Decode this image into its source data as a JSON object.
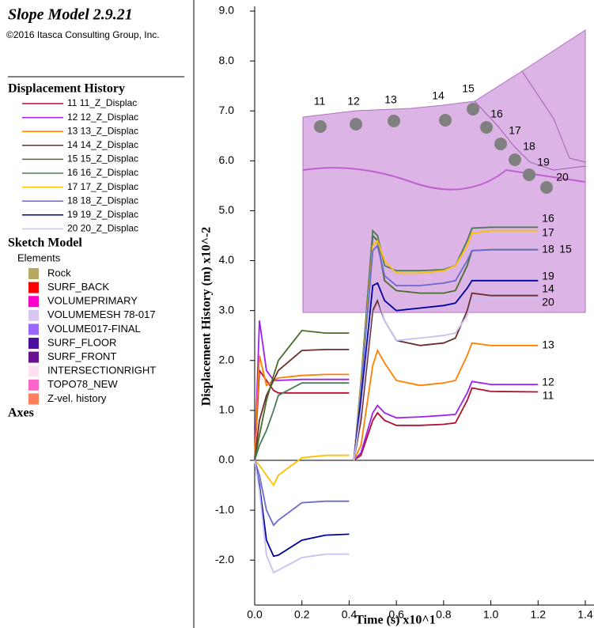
{
  "header": {
    "title": "Slope Model 2.9.21",
    "copyright": "©2016 Itasca Consulting Group, Inc."
  },
  "legend_title": "Displacement  History",
  "sketch_model": {
    "title": "Sketch Model",
    "subtitle": "Elements",
    "items": [
      {
        "label": "Rock",
        "color": "#b5a860"
      },
      {
        "label": "SURF_BACK",
        "color": "#ff0000"
      },
      {
        "label": "VOLUMEPRIMARY",
        "color": "#ff00cc"
      },
      {
        "label": "VOLUMEMESH 78-017",
        "color": "#d8c8f0"
      },
      {
        "label": "VOLUME017-FINAL",
        "color": "#9966ff"
      },
      {
        "label": "SURF_FLOOR",
        "color": "#4b0fa0"
      },
      {
        "label": "SURF_FRONT",
        "color": "#6a1090"
      },
      {
        "label": "INTERSECTIONRIGHT",
        "color": "#ffe0f0"
      },
      {
        "label": "TOPO78_NEW",
        "color": "#ff66cc"
      },
      {
        "label": "Z-vel. history",
        "color": "#ff8060"
      }
    ]
  },
  "axes_label": "Axes",
  "chart_data": {
    "type": "line",
    "x_label": "Time (s) x10^1",
    "y_label": "Displacement  History (m) x10^-2",
    "xlim": [
      0,
      1.4
    ],
    "ylim": [
      -2.9,
      9.0
    ],
    "xticks": [
      {
        "value": 0,
        "label": "0.0"
      },
      0.2,
      0.4,
      0.6,
      0.8,
      {
        "value": 1,
        "label": "1.0"
      },
      1.2,
      1.4
    ],
    "yticks": [
      {
        "value": 9,
        "label": "9.0"
      },
      {
        "value": 8,
        "label": "8.0"
      },
      {
        "value": 7,
        "label": "7.0"
      },
      {
        "value": 6,
        "label": "6.0"
      },
      {
        "value": 5,
        "label": "5.0"
      },
      {
        "value": 4,
        "label": "4.0"
      },
      {
        "value": 3,
        "label": "3.0"
      },
      {
        "value": 2,
        "label": "2.0"
      },
      {
        "value": 1,
        "label": "1.0"
      },
      {
        "value": 0,
        "label": "0.0"
      },
      {
        "value": -1,
        "label": "-1.0"
      },
      {
        "value": -2,
        "label": "-2.0"
      }
    ],
    "x": [
      0,
      0.02,
      0.05,
      0.08,
      0.1,
      0.2,
      0.3,
      0.4,
      0.41,
      0.42,
      0.45,
      0.5,
      0.52,
      0.55,
      0.6,
      0.7,
      0.8,
      0.85,
      0.9,
      0.92,
      1.0,
      1.2
    ],
    "series": [
      {
        "name": "11 11_Z_Displac",
        "color": "#b01030",
        "values": [
          0,
          1.8,
          1.6,
          1.4,
          1.35,
          1.35,
          1.35,
          1.35,
          null,
          0,
          0.1,
          0.8,
          0.95,
          0.8,
          0.7,
          0.7,
          0.72,
          0.75,
          1.2,
          1.45,
          1.38,
          1.37
        ]
      },
      {
        "name": "12 12_Z_Displac",
        "color": "#a020f0",
        "values": [
          0,
          2.8,
          1.8,
          1.6,
          1.6,
          1.62,
          1.62,
          1.62,
          null,
          0,
          0.15,
          0.95,
          1.1,
          0.95,
          0.85,
          0.87,
          0.9,
          0.92,
          1.35,
          1.58,
          1.52,
          1.52
        ]
      },
      {
        "name": "13 13_Z_Displac",
        "color": "#ff8000",
        "values": [
          0,
          2.1,
          1.5,
          1.6,
          1.65,
          1.7,
          1.72,
          1.72,
          null,
          0,
          0.3,
          1.9,
          2.2,
          1.95,
          1.6,
          1.5,
          1.55,
          1.6,
          2.1,
          2.35,
          2.3,
          2.3
        ]
      },
      {
        "name": "14 14_Z_Displac",
        "color": "#6b2d2d",
        "values": [
          0,
          0.8,
          1.3,
          1.6,
          1.8,
          2.2,
          2.22,
          2.22,
          null,
          0,
          0.8,
          3.0,
          3.2,
          2.8,
          2.4,
          2.3,
          2.35,
          2.45,
          3.0,
          3.35,
          3.3,
          3.3
        ]
      },
      {
        "name": "15 15_Z_Displac",
        "color": "#4a6b2a",
        "values": [
          0,
          0.5,
          1.2,
          1.7,
          2.0,
          2.6,
          2.55,
          2.55,
          null,
          0,
          1.5,
          4.5,
          4.4,
          3.6,
          3.4,
          3.35,
          3.35,
          3.4,
          3.9,
          4.2,
          4.22,
          4.22
        ]
      },
      {
        "name": "16 16_Z_Displac",
        "color": "#4a7a5a",
        "values": [
          0,
          0.3,
          0.6,
          1.0,
          1.3,
          1.55,
          1.55,
          1.55,
          null,
          0,
          1.6,
          4.6,
          4.5,
          3.9,
          3.8,
          3.8,
          3.82,
          3.9,
          4.4,
          4.65,
          4.67,
          4.67
        ]
      },
      {
        "name": "17 17_Z_Displac",
        "color": "#ffc000",
        "values": [
          0,
          -0.1,
          -0.3,
          -0.5,
          -0.3,
          0.05,
          0.1,
          0.1,
          null,
          0,
          1.5,
          4.3,
          4.4,
          4.0,
          3.75,
          3.75,
          3.8,
          3.9,
          4.3,
          4.55,
          4.6,
          4.6
        ]
      },
      {
        "name": "18 18_Z_Displac",
        "color": "#6a6ad0",
        "values": [
          0,
          -0.3,
          -1.0,
          -1.3,
          -1.2,
          -0.85,
          -0.82,
          -0.82,
          null,
          0,
          1.4,
          4.2,
          4.3,
          3.7,
          3.5,
          3.5,
          3.55,
          3.6,
          4.0,
          4.2,
          4.22,
          4.22
        ]
      },
      {
        "name": "19 19_Z_Displac",
        "color": "#0000a0",
        "values": [
          0,
          -0.5,
          -1.6,
          -1.92,
          -1.9,
          -1.6,
          -1.5,
          -1.48,
          null,
          0,
          1.2,
          3.5,
          3.55,
          3.2,
          3.0,
          3.05,
          3.1,
          3.15,
          3.45,
          3.6,
          3.6,
          3.6
        ]
      },
      {
        "name": "20 20_Z_Displac",
        "color": "#c8c0f0",
        "values": [
          0,
          -0.6,
          -1.9,
          -2.25,
          -2.2,
          -1.95,
          -1.88,
          -1.88,
          null,
          0,
          1.0,
          3.2,
          3.3,
          2.8,
          2.4,
          2.45,
          2.5,
          2.55,
          2.9,
          3.2,
          3.25,
          3.25
        ]
      }
    ],
    "end_labels": [
      "16",
      "17",
      "18",
      "15",
      "19",
      "14",
      "20",
      "13",
      "12",
      "11"
    ],
    "inset_labels": [
      "11",
      "12",
      "13",
      "14",
      "15",
      "16",
      "17",
      "18",
      "19",
      "20"
    ]
  }
}
